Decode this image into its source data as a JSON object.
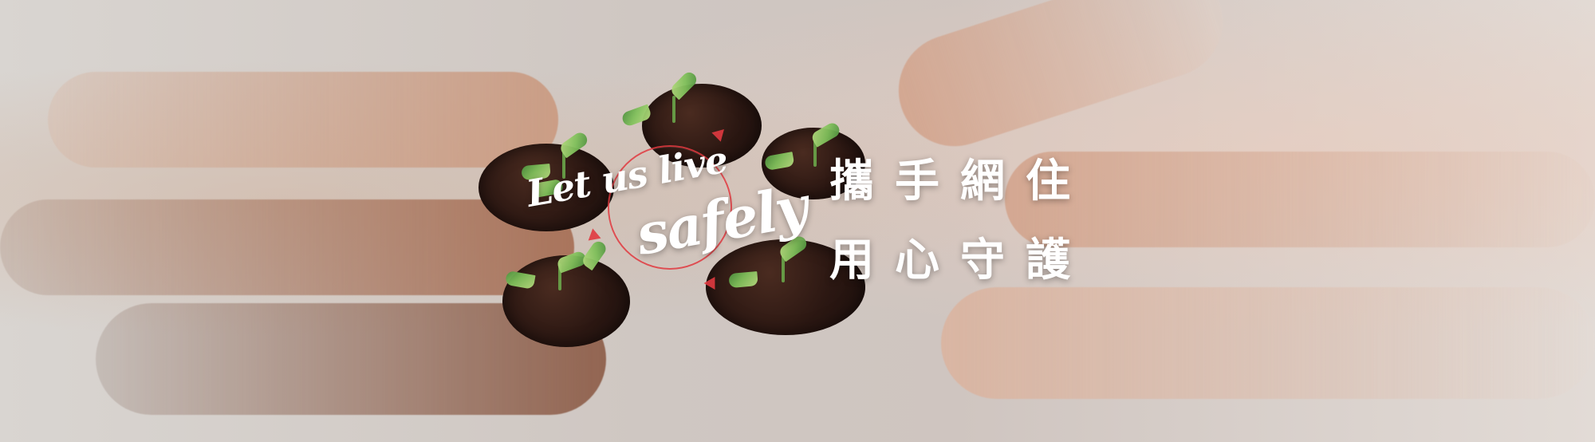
{
  "banner": {
    "script_line1": "Let us live",
    "script_line2": "safely",
    "chinese_line1": "攜手網住",
    "chinese_line2": "用心守護"
  },
  "colors": {
    "accent_red": "#e03a40",
    "text_white": "#ffffff"
  }
}
